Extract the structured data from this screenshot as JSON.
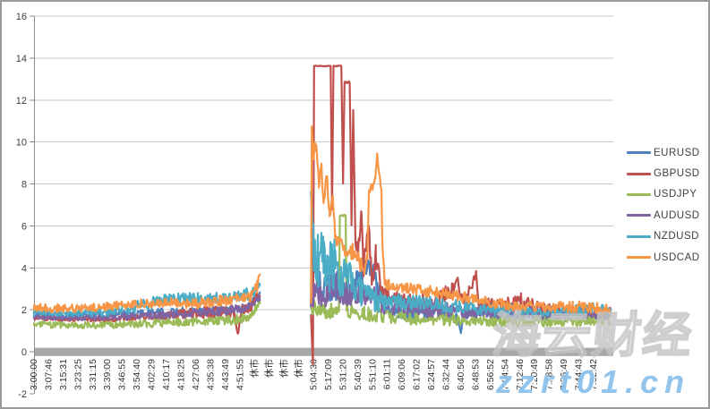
{
  "watermark": {
    "line1": "海云财经",
    "line2": "zzrt01.cn",
    "line2_color": "#8cc2ee"
  },
  "chart_data": {
    "type": "line",
    "title": "",
    "xlabel": "",
    "ylabel": "",
    "ylim": [
      -2,
      16
    ],
    "grid": true,
    "legend_position": "right",
    "gap_label": "休市",
    "y_ticks": [
      16,
      14,
      12,
      10,
      8,
      6,
      4,
      2,
      0,
      -2
    ],
    "categories": [
      "3:00:00",
      "3:07:46",
      "3:15:31",
      "3:23:25",
      "3:31:15",
      "3:39:00",
      "3:46:55",
      "3:54:40",
      "4:02:29",
      "4:10:17",
      "4:18:25",
      "4:27:06",
      "4:35:38",
      "4:43:49",
      "4:51:55",
      "休市",
      "休市",
      "休市",
      "休市",
      "5:04:36",
      "5:17:09",
      "5:31:20",
      "5:40:39",
      "5:51:10",
      "6:01:11",
      "6:09:06",
      "6:17:02",
      "6:24:57",
      "6:32:44",
      "6:40:56",
      "6:48:53",
      "6:56:52",
      "7:04:54",
      "7:12:46",
      "7:20:49",
      "7:28:58",
      "7:36:49",
      "7:44:43",
      "7:52:42"
    ],
    "axis_colors": {
      "grid": "#c8c8c8",
      "axis": "#8c8c8c",
      "zero_band": "#a8a8a8",
      "label": "#404040"
    },
    "series": [
      {
        "name": "EURUSD",
        "color": "#4F81BD",
        "segments": [
          [
            [
              0,
              1.9,
              0.15
            ],
            [
              0.02,
              1.75,
              0.15
            ],
            [
              0.08,
              1.75,
              0.15
            ],
            [
              0.16,
              1.8,
              0.18
            ],
            [
              0.24,
              1.9,
              0.2
            ],
            [
              0.3,
              1.95,
              0.2
            ],
            [
              0.34,
              2.05,
              0.22
            ],
            [
              0.37,
              2.1,
              0.25
            ],
            [
              0.39,
              2.8,
              0.15
            ]
          ],
          [
            [
              0.478,
              2.5,
              0.3
            ],
            [
              0.4805,
              7.5,
              0.15
            ],
            [
              0.483,
              4.2,
              0.8
            ],
            [
              0.49,
              3.2,
              0.8
            ],
            [
              0.5,
              3.0,
              0.7
            ],
            [
              0.52,
              3.0,
              0.7
            ],
            [
              0.54,
              2.8,
              0.6
            ],
            [
              0.56,
              3.4,
              0.7
            ],
            [
              0.575,
              3.9,
              0.5
            ],
            [
              0.585,
              4.0,
              0.4
            ],
            [
              0.595,
              3.0,
              0.5
            ],
            [
              0.605,
              2.2,
              0.4
            ],
            [
              0.62,
              1.9,
              0.3
            ],
            [
              0.66,
              1.85,
              0.3
            ],
            [
              0.7,
              1.9,
              0.33
            ],
            [
              0.733,
              1.6,
              0.3
            ],
            [
              0.737,
              0.95,
              0.1
            ],
            [
              0.741,
              1.8,
              0.3
            ],
            [
              0.78,
              1.8,
              0.3
            ],
            [
              0.83,
              1.7,
              0.25
            ],
            [
              0.88,
              1.75,
              0.25
            ],
            [
              0.93,
              1.7,
              0.25
            ],
            [
              0.995,
              1.75,
              0.25
            ]
          ]
        ]
      },
      {
        "name": "GBPUSD",
        "color": "#C0504D",
        "segments": [
          [
            [
              0,
              1.6,
              0.1
            ],
            [
              0.06,
              1.55,
              0.1
            ],
            [
              0.12,
              1.55,
              0.12
            ],
            [
              0.18,
              1.62,
              0.14
            ],
            [
              0.24,
              1.75,
              0.18
            ],
            [
              0.28,
              1.85,
              0.25
            ],
            [
              0.32,
              1.9,
              0.3
            ],
            [
              0.345,
              1.85,
              0.25
            ],
            [
              0.352,
              0.85,
              0.08
            ],
            [
              0.358,
              1.95,
              0.25
            ],
            [
              0.375,
              2.2,
              0.3
            ],
            [
              0.39,
              2.8,
              0.2
            ]
          ],
          [
            [
              0.478,
              1.9,
              0.2
            ],
            [
              0.4815,
              -0.6,
              0.02
            ],
            [
              0.4835,
              13.62,
              0.02
            ],
            [
              0.512,
              13.62,
              0.02
            ],
            [
              0.5145,
              6.8,
              0.1
            ],
            [
              0.517,
              13.62,
              0.02
            ],
            [
              0.5305,
              13.62,
              0.02
            ],
            [
              0.5335,
              8.0,
              0.1
            ],
            [
              0.536,
              12.85,
              0.05
            ],
            [
              0.545,
              12.85,
              0.05
            ],
            [
              0.548,
              6.0,
              0.3
            ],
            [
              0.551,
              11.5,
              0.05
            ],
            [
              0.5545,
              5.5,
              0.4
            ],
            [
              0.559,
              4.5,
              0.5
            ],
            [
              0.565,
              6.5,
              0.3
            ],
            [
              0.569,
              4.0,
              0.5
            ],
            [
              0.578,
              5.8,
              0.4
            ],
            [
              0.583,
              3.5,
              0.5
            ],
            [
              0.59,
              4.5,
              0.6
            ],
            [
              0.6,
              3.0,
              0.5
            ],
            [
              0.62,
              2.5,
              0.4
            ],
            [
              0.66,
              2.35,
              0.4
            ],
            [
              0.7,
              2.5,
              0.5
            ],
            [
              0.732,
              3.2,
              0.35
            ],
            [
              0.74,
              2.4,
              0.3
            ],
            [
              0.763,
              3.6,
              0.25
            ],
            [
              0.768,
              2.3,
              0.3
            ],
            [
              0.8,
              2.2,
              0.3
            ],
            [
              0.84,
              2.4,
              0.4
            ],
            [
              0.88,
              2.1,
              0.3
            ],
            [
              0.93,
              1.9,
              0.3
            ],
            [
              0.995,
              1.85,
              0.25
            ]
          ]
        ]
      },
      {
        "name": "USDJPY",
        "color": "#9BBB59",
        "segments": [
          [
            [
              0,
              1.3,
              0.15
            ],
            [
              0.08,
              1.25,
              0.15
            ],
            [
              0.16,
              1.3,
              0.17
            ],
            [
              0.24,
              1.38,
              0.2
            ],
            [
              0.3,
              1.45,
              0.2
            ],
            [
              0.34,
              1.5,
              0.22
            ],
            [
              0.37,
              1.7,
              0.25
            ],
            [
              0.39,
              2.3,
              0.15
            ]
          ],
          [
            [
              0.478,
              2.2,
              0.4
            ],
            [
              0.49,
              2.0,
              0.4
            ],
            [
              0.505,
              1.9,
              0.4
            ],
            [
              0.52,
              2.05,
              0.35
            ],
            [
              0.5265,
              2.1,
              0.2
            ],
            [
              0.528,
              6.5,
              0.04
            ],
            [
              0.538,
              6.5,
              0.04
            ],
            [
              0.5395,
              2.0,
              0.3
            ],
            [
              0.55,
              1.9,
              0.4
            ],
            [
              0.57,
              1.8,
              0.35
            ],
            [
              0.6,
              1.7,
              0.3
            ],
            [
              0.64,
              1.6,
              0.3
            ],
            [
              0.7,
              1.55,
              0.3
            ],
            [
              0.76,
              1.5,
              0.27
            ],
            [
              0.82,
              1.45,
              0.25
            ],
            [
              0.88,
              1.45,
              0.25
            ],
            [
              0.94,
              1.5,
              0.28
            ],
            [
              0.995,
              1.45,
              0.25
            ]
          ]
        ]
      },
      {
        "name": "AUDUSD",
        "color": "#8064A2",
        "segments": [
          [
            [
              0,
              1.6,
              0.12
            ],
            [
              0.08,
              1.6,
              0.12
            ],
            [
              0.16,
              1.68,
              0.14
            ],
            [
              0.24,
              1.75,
              0.17
            ],
            [
              0.3,
              1.9,
              0.2
            ],
            [
              0.34,
              2.0,
              0.22
            ],
            [
              0.37,
              2.1,
              0.25
            ],
            [
              0.39,
              2.55,
              0.15
            ]
          ],
          [
            [
              0.478,
              2.6,
              0.5
            ],
            [
              0.49,
              3.0,
              0.8
            ],
            [
              0.505,
              2.8,
              0.75
            ],
            [
              0.52,
              3.2,
              0.8
            ],
            [
              0.54,
              2.8,
              0.7
            ],
            [
              0.56,
              2.6,
              0.6
            ],
            [
              0.58,
              2.8,
              0.6
            ],
            [
              0.6,
              2.3,
              0.5
            ],
            [
              0.63,
              2.15,
              0.4
            ],
            [
              0.67,
              2.05,
              0.4
            ],
            [
              0.72,
              1.95,
              0.35
            ],
            [
              0.78,
              1.9,
              0.3
            ],
            [
              0.84,
              1.9,
              0.3
            ],
            [
              0.9,
              1.85,
              0.3
            ],
            [
              0.95,
              1.9,
              0.3
            ],
            [
              0.995,
              1.8,
              0.28
            ]
          ]
        ]
      },
      {
        "name": "NZDUSD",
        "color": "#4BACC6",
        "segments": [
          [
            [
              0,
              1.85,
              0.15
            ],
            [
              0.07,
              1.8,
              0.15
            ],
            [
              0.13,
              1.88,
              0.2
            ],
            [
              0.17,
              2.1,
              0.28
            ],
            [
              0.21,
              2.4,
              0.3
            ],
            [
              0.26,
              2.5,
              0.3
            ],
            [
              0.31,
              2.55,
              0.3
            ],
            [
              0.35,
              2.65,
              0.3
            ],
            [
              0.38,
              2.8,
              0.3
            ],
            [
              0.39,
              3.3,
              0.15
            ]
          ],
          [
            [
              0.478,
              7.55,
              0.2
            ],
            [
              0.483,
              5.0,
              1.2
            ],
            [
              0.49,
              4.5,
              1.5
            ],
            [
              0.5,
              4.2,
              1.5
            ],
            [
              0.51,
              4.0,
              1.3
            ],
            [
              0.52,
              4.3,
              1.5
            ],
            [
              0.53,
              3.8,
              1.2
            ],
            [
              0.54,
              3.5,
              1.0
            ],
            [
              0.55,
              3.2,
              0.9
            ],
            [
              0.565,
              2.8,
              0.7
            ],
            [
              0.58,
              2.6,
              0.6
            ],
            [
              0.595,
              2.35,
              0.5
            ],
            [
              0.61,
              2.4,
              0.45
            ],
            [
              0.64,
              2.4,
              0.4
            ],
            [
              0.68,
              2.35,
              0.35
            ],
            [
              0.73,
              2.15,
              0.33
            ],
            [
              0.79,
              2.0,
              0.3
            ],
            [
              0.85,
              1.95,
              0.3
            ],
            [
              0.91,
              1.9,
              0.3
            ],
            [
              0.96,
              2.0,
              0.33
            ],
            [
              0.995,
              1.9,
              0.3
            ]
          ]
        ]
      },
      {
        "name": "USDCAD",
        "color": "#F79646",
        "segments": [
          [
            [
              0,
              2.1,
              0.2
            ],
            [
              0.05,
              2.05,
              0.2
            ],
            [
              0.11,
              2.1,
              0.2
            ],
            [
              0.17,
              2.28,
              0.22
            ],
            [
              0.23,
              2.35,
              0.23
            ],
            [
              0.28,
              2.3,
              0.25
            ],
            [
              0.32,
              2.42,
              0.25
            ],
            [
              0.35,
              2.5,
              0.28
            ],
            [
              0.375,
              2.6,
              0.3
            ],
            [
              0.385,
              3.1,
              0.3
            ],
            [
              0.39,
              3.75,
              0.1
            ]
          ],
          [
            [
              0.478,
              2.3,
              0.1
            ],
            [
              0.4795,
              10.65,
              0.1
            ],
            [
              0.483,
              9.3,
              0.5
            ],
            [
              0.487,
              10.0,
              0.3
            ],
            [
              0.492,
              8.0,
              0.5
            ],
            [
              0.496,
              9.2,
              0.4
            ],
            [
              0.5,
              6.9,
              0.4
            ],
            [
              0.505,
              8.6,
              0.3
            ],
            [
              0.51,
              6.6,
              0.4
            ],
            [
              0.515,
              7.4,
              0.4
            ],
            [
              0.521,
              5.3,
              0.3
            ],
            [
              0.53,
              5.0,
              0.4
            ],
            [
              0.54,
              4.6,
              0.4
            ],
            [
              0.55,
              4.8,
              0.4
            ],
            [
              0.56,
              4.4,
              0.4
            ],
            [
              0.57,
              3.8,
              0.3
            ],
            [
              0.5755,
              4.5,
              0.3
            ],
            [
              0.578,
              7.6,
              0.15
            ],
            [
              0.584,
              7.9,
              0.25
            ],
            [
              0.589,
              8.3,
              0.2
            ],
            [
              0.5925,
              9.45,
              0.08
            ],
            [
              0.596,
              8.3,
              0.2
            ],
            [
              0.5995,
              7.8,
              0.15
            ],
            [
              0.602,
              4.5,
              0.3
            ],
            [
              0.606,
              3.2,
              0.3
            ],
            [
              0.62,
              3.15,
              0.25
            ],
            [
              0.65,
              3.0,
              0.25
            ],
            [
              0.69,
              2.85,
              0.28
            ],
            [
              0.73,
              2.65,
              0.28
            ],
            [
              0.78,
              2.4,
              0.25
            ],
            [
              0.83,
              2.2,
              0.25
            ],
            [
              0.88,
              2.1,
              0.25
            ],
            [
              0.93,
              2.15,
              0.28
            ],
            [
              0.97,
              2.05,
              0.3
            ],
            [
              0.995,
              1.95,
              0.28
            ]
          ]
        ]
      }
    ]
  }
}
